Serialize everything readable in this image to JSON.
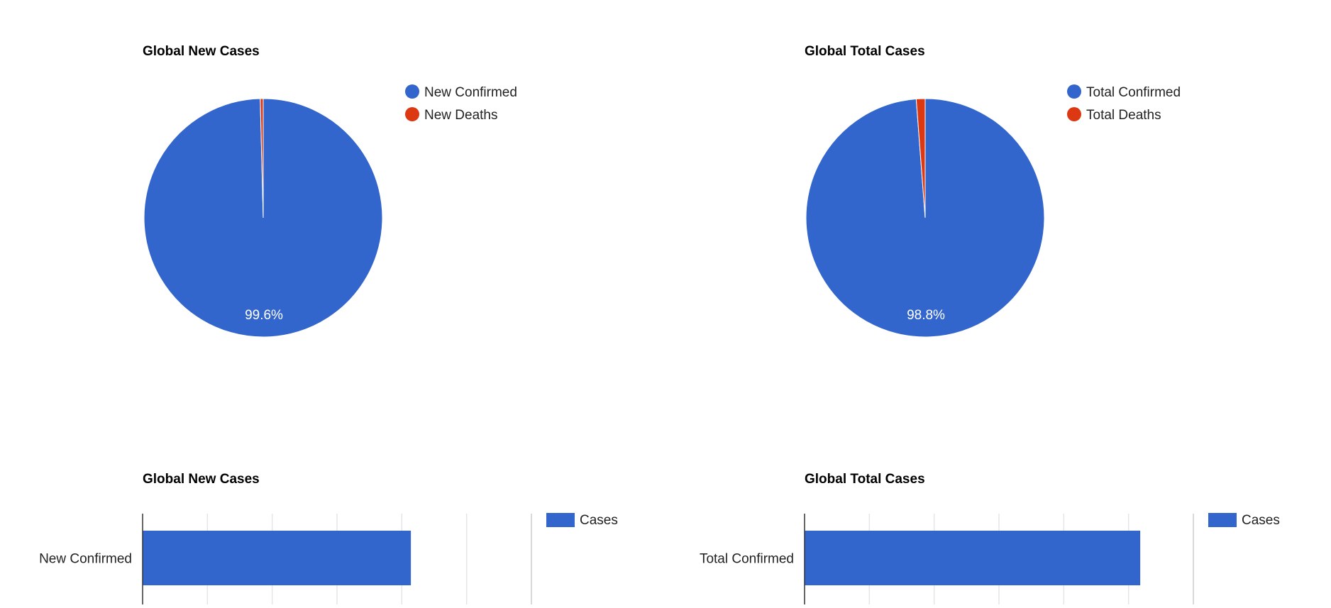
{
  "chart_data": [
    {
      "type": "pie",
      "title": "Global New Cases",
      "slices": [
        {
          "label": "New Confirmed",
          "percent": 99.6,
          "color": "#3366cc"
        },
        {
          "label": "New Deaths",
          "percent": 0.4,
          "color": "#dc3912"
        }
      ],
      "slice_labels": [
        "99.6%",
        ""
      ],
      "legend": "right"
    },
    {
      "type": "pie",
      "title": "Global Total Cases",
      "slices": [
        {
          "label": "Total Confirmed",
          "percent": 98.8,
          "color": "#3366cc"
        },
        {
          "label": "Total Deaths",
          "percent": 1.2,
          "color": "#dc3912"
        }
      ],
      "slice_labels": [
        "98.8%",
        ""
      ],
      "legend": "right"
    },
    {
      "type": "bar",
      "orientation": "horizontal",
      "title": "Global New Cases",
      "categories": [
        "New Confirmed"
      ],
      "series": [
        {
          "name": "Cases",
          "values": [
            4.14
          ],
          "color": "#3366cc"
        }
      ],
      "xlim": [
        0,
        6
      ],
      "grid": true,
      "legend": "top-right"
    },
    {
      "type": "bar",
      "orientation": "horizontal",
      "title": "Global Total Cases",
      "categories": [
        "Total Confirmed"
      ],
      "series": [
        {
          "name": "Cases",
          "values": [
            5.18
          ],
          "color": "#3366cc"
        }
      ],
      "xlim": [
        0,
        6
      ],
      "grid": true,
      "legend": "top-right"
    }
  ]
}
